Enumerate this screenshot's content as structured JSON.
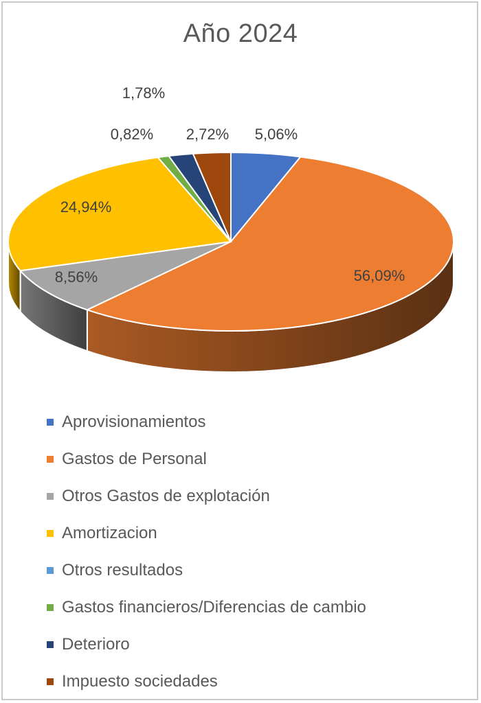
{
  "chart_data": {
    "type": "pie",
    "title": "Año 2024",
    "legend_position": "bottom",
    "series": [
      {
        "name": "Aprovisionamientos",
        "value": 5.06,
        "label": "5,06%",
        "color": "#4472c4"
      },
      {
        "name": "Gastos de Personal",
        "value": 56.09,
        "label": "56,09%",
        "color": "#ed7d31"
      },
      {
        "name": "Otros Gastos de explotación",
        "value": 8.56,
        "label": "8,56%",
        "color": "#a5a5a5"
      },
      {
        "name": "Amortizacion",
        "value": 24.94,
        "label": "24,94%",
        "color": "#ffc000"
      },
      {
        "name": "Otros resultados",
        "value": 0,
        "label": "",
        "color": "#5b9bd5"
      },
      {
        "name": "Gastos financieros/Diferencias de cambio",
        "value": 0.82,
        "label": "0,82%",
        "color": "#70ad47"
      },
      {
        "name": "Deterioro",
        "value": 1.78,
        "label": "1,78%",
        "color": "#264478"
      },
      {
        "name": "Impuesto sociedades",
        "value": 2.72,
        "label": "2,72%",
        "color": "#9e480e"
      }
    ]
  }
}
